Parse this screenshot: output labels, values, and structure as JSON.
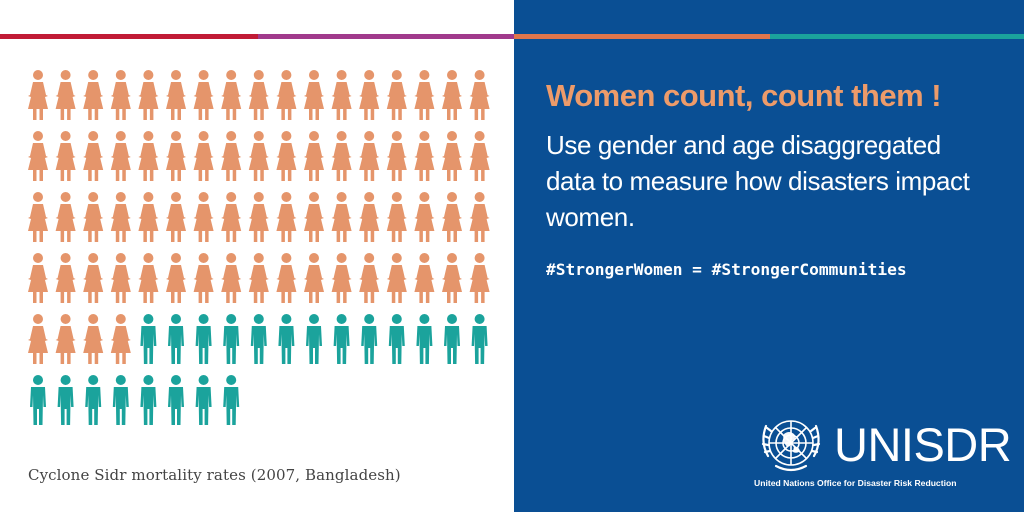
{
  "infographic": {
    "caption": "Cyclone Sidr mortality rates (2007, Bangladesh)",
    "women_icons": 72,
    "men_icons": 21,
    "icons_per_row": 17,
    "colors": {
      "women": "#e5956b",
      "men": "#1ba39c",
      "background_left": "#ffffff",
      "background_right": "#0a4f94",
      "stripe": [
        "#c11b36",
        "#a13a8c",
        "#e0764c",
        "#1ba39c"
      ]
    }
  },
  "message": {
    "headline": "Women count, count them !",
    "body": "Use gender and age disaggregated data to measure how disasters impact women.",
    "hashtag": "#StrongerWomen = #StrongerCommunities"
  },
  "logo": {
    "name": "UNISDR",
    "subtitle": "United Nations Office for Disaster Risk Reduction",
    "emblem": "un-emblem-icon"
  }
}
